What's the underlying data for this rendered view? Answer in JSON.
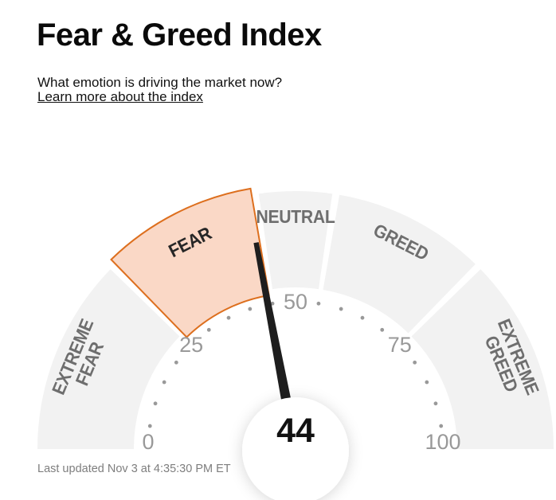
{
  "header": {
    "title": "Fear & Greed Index",
    "subtitle": "What emotion is driving the market now?",
    "link_label": "Learn more about the index"
  },
  "chart_data": {
    "type": "gauge",
    "title": "Fear & Greed Index",
    "value": 44,
    "value_label": "44",
    "min": 0,
    "max": 100,
    "tick_labels": [
      0,
      25,
      50,
      75,
      100
    ],
    "dot_step": 5,
    "current_sentiment": "Fear",
    "segments": [
      {
        "name": "extreme-fear",
        "label": "EXTREME\nFEAR",
        "start": 0,
        "end": 25,
        "active": false
      },
      {
        "name": "fear",
        "label": "FEAR",
        "start": 25,
        "end": 45,
        "active": true
      },
      {
        "name": "neutral",
        "label": "NEUTRAL",
        "start": 45,
        "end": 55,
        "active": false
      },
      {
        "name": "greed",
        "label": "GREED",
        "start": 55,
        "end": 75,
        "active": false
      },
      {
        "name": "extreme-greed",
        "label": "EXTREME\nGREED",
        "start": 75,
        "end": 100,
        "active": false
      }
    ],
    "colors": {
      "segment_fill": "#f2f2f2",
      "segment_label": "#6e6e6e",
      "active_fill": "#fad8c6",
      "active_stroke": "#dd6f1e",
      "active_label": "#262626",
      "tick_label": "#999999",
      "dot": "#999999",
      "needle": "#1e1e1e"
    }
  },
  "footer": {
    "last_updated": "Last updated Nov 3 at 4:35:30 PM ET"
  }
}
